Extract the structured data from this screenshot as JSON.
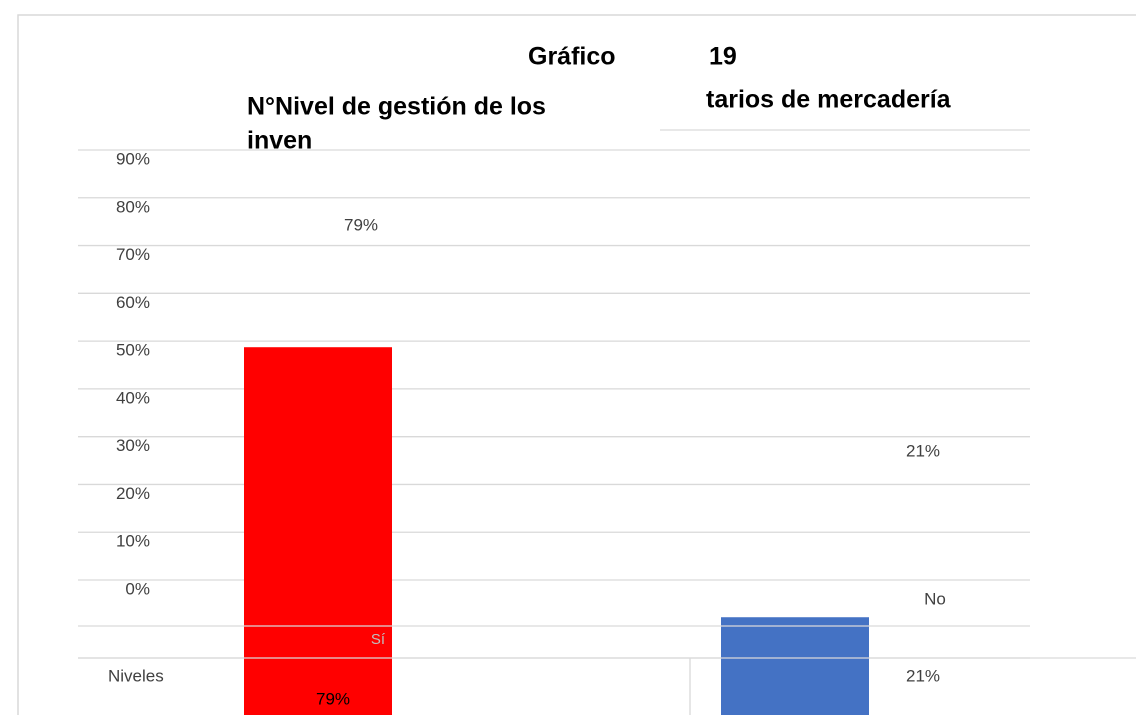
{
  "chart_data": {
    "type": "bar",
    "title_lines": [
      "Gráfico",
      "19",
      "N°Nivel de gestión de los",
      "inven",
      "tarios de mercadería"
    ],
    "categories": [
      "Sí",
      "No"
    ],
    "values": [
      79,
      21
    ],
    "value_labels": [
      "79%",
      "21%"
    ],
    "colors": [
      "#ff0000",
      "#4472c4"
    ],
    "x_label": "Niveles",
    "ylim": [
      0,
      90
    ],
    "yticks": [
      {
        "value": 0,
        "label": "0%"
      },
      {
        "value": 10,
        "label": "10%"
      },
      {
        "value": 20,
        "label": "20%"
      },
      {
        "value": 30,
        "label": "30%"
      },
      {
        "value": 40,
        "label": "40%"
      },
      {
        "value": 50,
        "label": "50%"
      },
      {
        "value": 60,
        "label": "60%"
      },
      {
        "value": 70,
        "label": "70%"
      },
      {
        "value": 80,
        "label": "80%"
      },
      {
        "value": 90,
        "label": "90%"
      }
    ],
    "grid": true
  }
}
